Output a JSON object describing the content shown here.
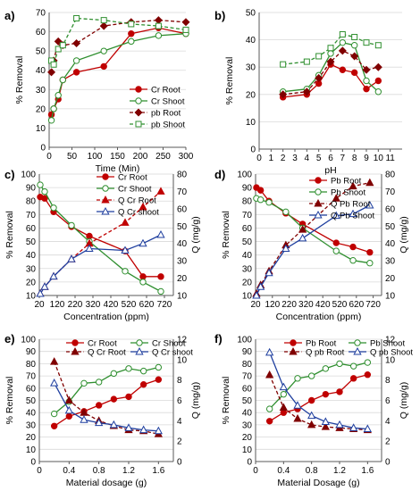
{
  "figure": {
    "panels": [
      {
        "letter": "a)"
      },
      {
        "letter": "b)"
      },
      {
        "letter": "c)"
      },
      {
        "letter": "d)"
      },
      {
        "letter": "e)"
      },
      {
        "letter": "f)"
      }
    ]
  },
  "chart_data": [
    {
      "panel": "a)",
      "type": "line",
      "xlabel": "Time (Min)",
      "ylabel": "% Removal",
      "xlim": [
        0,
        300
      ],
      "ylim": [
        0,
        70
      ],
      "xticks": [
        0,
        50,
        100,
        150,
        200,
        250,
        300
      ],
      "yticks": [
        0,
        10,
        20,
        30,
        40,
        50,
        60,
        70
      ],
      "legend": "bottom-right",
      "series": [
        {
          "name": "Cr Root",
          "color": "#c00000",
          "line": "solid",
          "marker": "circle",
          "fill": "#c00000",
          "x": [
            5,
            10,
            20,
            30,
            60,
            120,
            180,
            240,
            300
          ],
          "y": [
            17,
            20,
            25,
            35,
            39,
            42,
            59,
            62,
            59
          ]
        },
        {
          "name": "Cr Shoot",
          "color": "#2f8f2f",
          "line": "solid",
          "marker": "circle",
          "fill": "#ffffff",
          "x": [
            5,
            10,
            20,
            30,
            60,
            120,
            180,
            240,
            300
          ],
          "y": [
            14,
            20,
            27,
            35,
            45,
            50,
            55,
            58,
            59
          ]
        },
        {
          "name": "pb Root",
          "color": "#800000",
          "line": "dashed",
          "marker": "diamond",
          "fill": "#800000",
          "x": [
            5,
            10,
            20,
            30,
            60,
            120,
            180,
            240,
            300
          ],
          "y": [
            39,
            45,
            55,
            53,
            54,
            63,
            65,
            66,
            65
          ]
        },
        {
          "name": "pb Shoot",
          "color": "#2f8f2f",
          "line": "dashed",
          "marker": "square",
          "fill": "#ffffff",
          "x": [
            5,
            10,
            20,
            30,
            60,
            120,
            180,
            240,
            300
          ],
          "y": [
            45,
            43,
            51,
            53,
            67,
            66,
            64,
            63,
            61
          ]
        }
      ]
    },
    {
      "panel": "b)",
      "type": "line",
      "xlabel": "pH",
      "ylabel": "% Removal",
      "xlim": [
        0,
        12
      ],
      "ylim": [
        0,
        50
      ],
      "xticks": [
        0,
        1,
        2,
        3,
        4,
        5,
        6,
        7,
        8,
        9,
        10,
        11
      ],
      "yticks": [
        0,
        10,
        20,
        30,
        40,
        50
      ],
      "legend": "none",
      "series": [
        {
          "name": "Cr Root",
          "color": "#c00000",
          "line": "solid",
          "marker": "circle",
          "fill": "#c00000",
          "x": [
            2,
            4,
            5,
            6,
            7,
            8,
            9,
            10
          ],
          "y": [
            19,
            20,
            24,
            31,
            29,
            28,
            22,
            25
          ]
        },
        {
          "name": "Cr Shoot",
          "color": "#2f8f2f",
          "line": "solid",
          "marker": "circle",
          "fill": "#ffffff",
          "x": [
            2,
            4,
            5,
            6,
            7,
            8,
            9,
            10
          ],
          "y": [
            21,
            22,
            27,
            35,
            39,
            38,
            25,
            21
          ]
        },
        {
          "name": "pb Root",
          "color": "#800000",
          "line": "dashed",
          "marker": "diamond",
          "fill": "#800000",
          "x": [
            2,
            4,
            5,
            6,
            7,
            8,
            9,
            10
          ],
          "y": [
            20,
            21,
            26,
            32,
            36,
            34,
            29,
            30
          ]
        },
        {
          "name": "pb Shoot",
          "color": "#2f8f2f",
          "line": "dashed",
          "marker": "square",
          "fill": "#ffffff",
          "x": [
            2,
            4,
            5,
            6,
            7,
            8,
            9,
            10
          ],
          "y": [
            31,
            32,
            34,
            37,
            42,
            41,
            39,
            38
          ]
        }
      ]
    },
    {
      "panel": "c)",
      "type": "line",
      "xlabel": "Concentration (ppm)",
      "ylabel": "% Removal",
      "ylabel_right": "Q (mg/g)",
      "xlim": [
        20,
        770
      ],
      "ylim": [
        10,
        100
      ],
      "ylim_right": [
        10,
        80
      ],
      "xticks": [
        20,
        120,
        220,
        320,
        420,
        520,
        620,
        720
      ],
      "yticks": [
        10,
        20,
        30,
        40,
        50,
        60,
        70,
        80,
        90,
        100
      ],
      "yticks_right": [
        10,
        20,
        30,
        40,
        50,
        60,
        70,
        80
      ],
      "legend": "top-right",
      "series": [
        {
          "name": "Cr Root",
          "axis": "left",
          "color": "#c00000",
          "line": "solid",
          "marker": "circle",
          "fill": "#c00000",
          "x": [
            25,
            50,
            100,
            200,
            300,
            500,
            600,
            700
          ],
          "y": [
            83,
            82,
            72,
            61,
            54,
            43,
            24,
            24
          ]
        },
        {
          "name": "Cr Shoot",
          "axis": "left",
          "color": "#2f8f2f",
          "line": "solid",
          "marker": "circle",
          "fill": "#ffffff",
          "x": [
            25,
            50,
            100,
            200,
            300,
            500,
            600,
            700
          ],
          "y": [
            92,
            87,
            75,
            62,
            50,
            28,
            20,
            13
          ]
        },
        {
          "name": "Q Cr Root",
          "axis": "right",
          "color": "#c00000",
          "line": "dashed",
          "marker": "triangle",
          "fill": "#c00000",
          "x": [
            25,
            50,
            100,
            200,
            300,
            500,
            600,
            700
          ],
          "y": [
            11,
            15,
            21,
            31,
            40,
            52,
            61,
            70
          ]
        },
        {
          "name": "Q Cr shoot",
          "axis": "right",
          "color": "#1f3f9f",
          "line": "solid",
          "marker": "triangle",
          "fill": "#ffffff",
          "x": [
            25,
            50,
            100,
            200,
            300,
            500,
            600,
            700
          ],
          "y": [
            11,
            15,
            21,
            31,
            37,
            36,
            40,
            45
          ]
        }
      ]
    },
    {
      "panel": "d)",
      "type": "line",
      "xlabel": "Concentration (ppm)",
      "ylabel": "% Removal",
      "ylabel_right": "Q (mg/g)",
      "xlim": [
        20,
        770
      ],
      "ylim": [
        10,
        100
      ],
      "ylim_right": [
        10,
        80
      ],
      "xticks": [
        20,
        120,
        220,
        320,
        420,
        520,
        620,
        720
      ],
      "yticks": [
        10,
        20,
        30,
        40,
        50,
        60,
        70,
        80,
        90,
        100
      ],
      "yticks_right": [
        10,
        20,
        30,
        40,
        50,
        60,
        70,
        80
      ],
      "legend": "top-right",
      "series": [
        {
          "name": "Pb Root",
          "axis": "left",
          "color": "#c00000",
          "line": "solid",
          "marker": "circle",
          "fill": "#c00000",
          "x": [
            25,
            50,
            100,
            200,
            300,
            500,
            600,
            700
          ],
          "y": [
            90,
            88,
            80,
            71,
            63,
            49,
            46,
            42
          ]
        },
        {
          "name": "Pb Shoot",
          "axis": "left",
          "color": "#2f8f2f",
          "line": "solid",
          "marker": "circle",
          "fill": "#ffffff",
          "x": [
            25,
            50,
            100,
            200,
            300,
            500,
            600,
            700
          ],
          "y": [
            82,
            81,
            79,
            72,
            60,
            43,
            36,
            34
          ]
        },
        {
          "name": "Q Pb Root",
          "axis": "right",
          "color": "#800000",
          "line": "dashed",
          "marker": "triangle",
          "fill": "#800000",
          "x": [
            25,
            50,
            100,
            200,
            300,
            500,
            600,
            700
          ],
          "y": [
            11,
            16,
            24,
            39,
            48,
            66,
            73,
            75
          ]
        },
        {
          "name": "Q Pb Shoot",
          "axis": "right",
          "color": "#1f3f9f",
          "line": "solid",
          "marker": "triangle",
          "fill": "#ffffff",
          "x": [
            25,
            50,
            100,
            200,
            300,
            500,
            600,
            700
          ],
          "y": [
            10,
            15,
            23,
            37,
            43,
            56,
            57,
            62
          ]
        }
      ]
    },
    {
      "panel": "e)",
      "type": "line",
      "xlabel": "Material dosage (g)",
      "ylabel": "% Removal",
      "ylabel_right": "Q (mg/g)",
      "xlim": [
        0,
        1.8
      ],
      "ylim": [
        0,
        100
      ],
      "ylim_right": [
        0,
        12
      ],
      "xticks": [
        0,
        0.4,
        0.8,
        1.2,
        1.6
      ],
      "yticks": [
        0,
        10,
        20,
        30,
        40,
        50,
        60,
        70,
        80,
        90,
        100
      ],
      "yticks_right": [
        0,
        2,
        4,
        6,
        8,
        10,
        12
      ],
      "legend": "top",
      "series": [
        {
          "name": "Cr Root",
          "axis": "left",
          "color": "#c00000",
          "line": "solid",
          "marker": "circle",
          "fill": "#c00000",
          "x": [
            0.2,
            0.4,
            0.6,
            0.8,
            1.0,
            1.2,
            1.4,
            1.6
          ],
          "y": [
            29,
            37,
            41,
            46,
            51,
            53,
            63,
            67
          ]
        },
        {
          "name": "Cr Shoot",
          "axis": "left",
          "color": "#2f8f2f",
          "line": "solid",
          "marker": "circle",
          "fill": "#ffffff",
          "x": [
            0.2,
            0.4,
            0.6,
            0.8,
            1.0,
            1.2,
            1.4,
            1.6
          ],
          "y": [
            39,
            49,
            64,
            65,
            72,
            76,
            74,
            77
          ]
        },
        {
          "name": "Q Cr Root",
          "axis": "right",
          "color": "#800000",
          "line": "dashed",
          "marker": "triangle",
          "fill": "#800000",
          "x": [
            0.2,
            0.4,
            0.6,
            0.8,
            1.0,
            1.2,
            1.4,
            1.6
          ],
          "y": [
            9.8,
            6.0,
            4.8,
            4.0,
            3.5,
            3.1,
            3.0,
            2.7
          ]
        },
        {
          "name": "Q Cr shoot",
          "axis": "right",
          "color": "#1f3f9f",
          "line": "solid",
          "marker": "triangle",
          "fill": "#ffffff",
          "x": [
            0.2,
            0.4,
            0.6,
            0.8,
            1.0,
            1.2,
            1.4,
            1.6
          ],
          "y": [
            7.7,
            5.0,
            4.1,
            3.8,
            3.6,
            3.3,
            3.1,
            3.0
          ]
        }
      ]
    },
    {
      "panel": "f)",
      "type": "line",
      "xlabel": "Material Dosage (g)",
      "ylabel": "% Removal",
      "ylabel_right": "Q (mg/g)",
      "xlim": [
        0,
        1.8
      ],
      "ylim": [
        0,
        100
      ],
      "ylim_right": [
        0,
        12
      ],
      "xticks": [
        0,
        0.4,
        0.8,
        1.2,
        1.6
      ],
      "yticks": [
        0,
        10,
        20,
        30,
        40,
        50,
        60,
        70,
        80,
        90,
        100
      ],
      "yticks_right": [
        0,
        2,
        4,
        6,
        8,
        10,
        12
      ],
      "legend": "top",
      "series": [
        {
          "name": "Pb Root",
          "axis": "left",
          "color": "#c00000",
          "line": "solid",
          "marker": "circle",
          "fill": "#c00000",
          "x": [
            0.2,
            0.4,
            0.6,
            0.8,
            1.0,
            1.2,
            1.4,
            1.6
          ],
          "y": [
            33,
            40,
            43,
            50,
            55,
            57,
            68,
            71
          ]
        },
        {
          "name": "Pb Shoot",
          "axis": "left",
          "color": "#2f8f2f",
          "line": "solid",
          "marker": "circle",
          "fill": "#ffffff",
          "x": [
            0.2,
            0.4,
            0.6,
            0.8,
            1.0,
            1.2,
            1.4,
            1.6
          ],
          "y": [
            43,
            55,
            68,
            70,
            76,
            80,
            78,
            81
          ]
        },
        {
          "name": "Q pb Root",
          "axis": "right",
          "color": "#800000",
          "line": "dashed",
          "marker": "triangle",
          "fill": "#800000",
          "x": [
            0.2,
            0.4,
            0.6,
            0.8,
            1.0,
            1.2,
            1.4,
            1.6
          ],
          "y": [
            8.5,
            5.3,
            4.2,
            3.6,
            3.4,
            3.3,
            3.2,
            3.1
          ]
        },
        {
          "name": "Q pb Shoot",
          "axis": "right",
          "color": "#1f3f9f",
          "line": "solid",
          "marker": "triangle",
          "fill": "#ffffff",
          "x": [
            0.2,
            0.4,
            0.6,
            0.8,
            1.0,
            1.2,
            1.4,
            1.6
          ],
          "y": [
            10.7,
            7.3,
            5.5,
            4.5,
            3.9,
            3.6,
            3.3,
            3.2
          ]
        }
      ]
    }
  ]
}
